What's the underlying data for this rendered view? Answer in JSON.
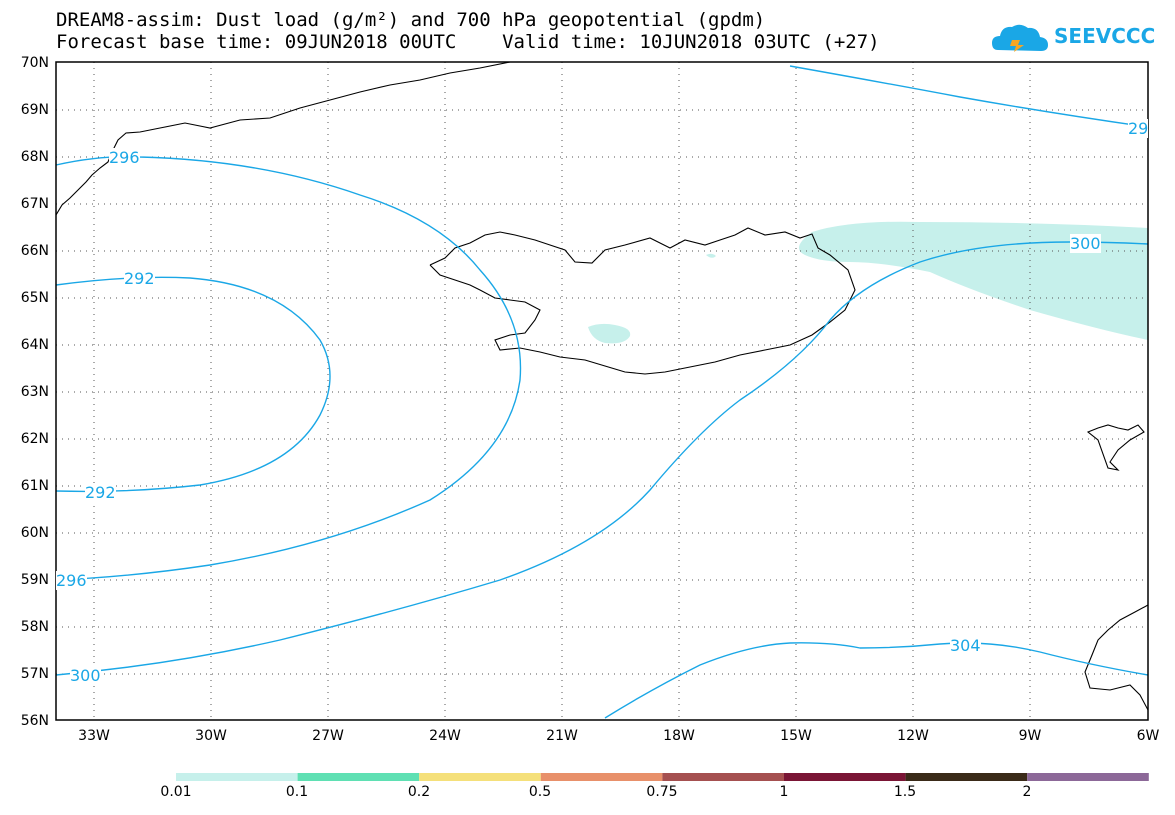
{
  "title": {
    "line1": "DREAM8-assim: Dust load (g/m²) and 700 hPa geopotential (gpdm)",
    "line2": "Forecast base time: 09JUN2018 00UTC    Valid time: 10JUN2018 03UTC (+27)"
  },
  "logo": {
    "text": "SEEVCCC",
    "color": "#1aa7e6"
  },
  "map": {
    "lat_labels": [
      "70N",
      "69N",
      "68N",
      "67N",
      "66N",
      "65N",
      "64N",
      "63N",
      "62N",
      "61N",
      "60N",
      "59N",
      "58N",
      "57N",
      "56N"
    ],
    "lon_labels": [
      "33W",
      "30W",
      "27W",
      "24W",
      "21W",
      "18W",
      "15W",
      "12W",
      "9W",
      "6W"
    ],
    "contour_color": "#1aa7e6",
    "dust_color": "#c6f0eb",
    "contour_labels": {
      "c296_top": "296",
      "c292_top": "292",
      "c292_bottom": "292",
      "c296_left": "296",
      "c300_left": "300",
      "c300_right": "300",
      "c304": "304",
      "c29_right": "29"
    }
  },
  "colorbar": {
    "colors": [
      "#c6f0eb",
      "#5fe0b3",
      "#f5e07a",
      "#e8906a",
      "#a55050",
      "#7a1535",
      "#3a2a18",
      "#8c6898"
    ],
    "labels": [
      "0.01",
      "0.1",
      "0.2",
      "0.5",
      "0.75",
      "1",
      "1.5",
      "2"
    ]
  }
}
